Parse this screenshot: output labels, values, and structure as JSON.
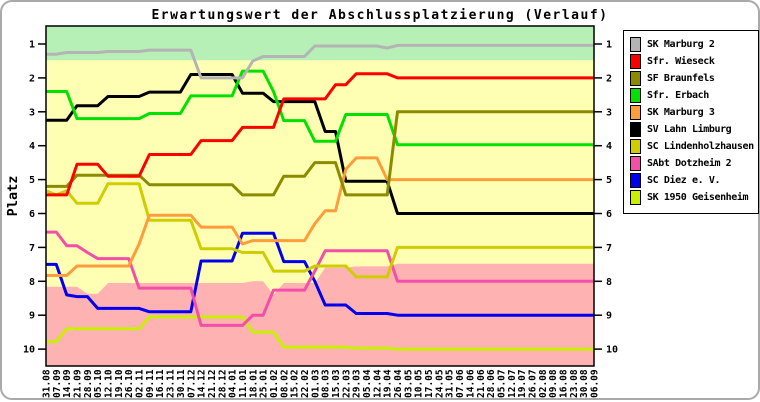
{
  "window": {
    "background": "#ffffff",
    "frame_color": "#a9a9a9"
  },
  "chart_data": {
    "type": "line",
    "title": "Erwartungswert der Abschlussplatzierung (Verlauf)",
    "ylabel": "Platz",
    "y_axis_inverted": true,
    "y_ticks": [
      1,
      2,
      3,
      4,
      5,
      6,
      7,
      8,
      9,
      10
    ],
    "ylim": [
      0.6,
      10.3
    ],
    "grid": false,
    "legend_position": "right",
    "x": [
      "31.08",
      "07.09",
      "14.09",
      "21.09",
      "28.09",
      "05.10",
      "12.10",
      "19.10",
      "26.10",
      "02.11",
      "09.11",
      "16.11",
      "23.11",
      "30.11",
      "07.12",
      "14.12",
      "21.12",
      "28.12",
      "04.01",
      "11.01",
      "18.01",
      "25.01",
      "01.02",
      "08.02",
      "15.02",
      "22.02",
      "01.03",
      "08.03",
      "15.03",
      "22.03",
      "29.03",
      "05.04",
      "12.04",
      "19.04",
      "26.04",
      "03.05",
      "10.05",
      "17.05",
      "24.05",
      "31.05",
      "07.06",
      "14.06",
      "21.06",
      "28.06",
      "05.07",
      "12.07",
      "19.07",
      "26.07",
      "02.08",
      "09.08",
      "16.08",
      "23.08",
      "30.08",
      "06.09"
    ],
    "zones": {
      "promotion": {
        "color": "#b6f0b6",
        "to_rank": 1.48
      },
      "neutral_color": "#ffffb4",
      "relegation": {
        "color": "#ffb2b2",
        "top_by_week": [
          8.16,
          8.16,
          8.16,
          8.16,
          8.37,
          8.37,
          8.05,
          8.05,
          8.05,
          8.05,
          8.05,
          8.05,
          8.05,
          8.05,
          8.05,
          8.05,
          8.05,
          8.05,
          8.05,
          8.05,
          8.0,
          8.0,
          8.4,
          8.05,
          8.05,
          8.05,
          8.05,
          7.6,
          7.6,
          7.6,
          7.56,
          7.56,
          7.56,
          7.56,
          7.48,
          7.48,
          7.48,
          7.48,
          7.48,
          7.48,
          7.48,
          7.48,
          7.48,
          7.48,
          7.48,
          7.48,
          7.48,
          7.48,
          7.48,
          7.48,
          7.48,
          7.48,
          7.48,
          7.48
        ]
      }
    },
    "series": [
      {
        "name": "SK Marburg 2",
        "color": "#b4b4b4",
        "values": [
          1.3,
          1.3,
          1.25,
          1.25,
          1.25,
          1.25,
          1.22,
          1.22,
          1.22,
          1.22,
          1.18,
          1.18,
          1.18,
          1.18,
          1.18,
          2,
          2,
          2,
          2,
          2,
          1.5,
          1.37,
          1.37,
          1.37,
          1.37,
          1.37,
          1.06,
          1.06,
          1.06,
          1.06,
          1.06,
          1.06,
          1.06,
          1.12,
          1.04,
          1.04,
          1.04,
          1.04,
          1.04,
          1.04,
          1.04,
          1.04,
          1.04,
          1.04,
          1.04,
          1.04,
          1.04,
          1.04,
          1.04,
          1.04,
          1.04,
          1.04,
          1.04,
          1.04
        ]
      },
      {
        "name": "Sfr. Wieseck",
        "color": "#ff0000",
        "values": [
          5.45,
          5.45,
          5.45,
          4.55,
          4.55,
          4.55,
          4.9,
          4.9,
          4.9,
          4.9,
          4.26,
          4.26,
          4.26,
          4.26,
          4.26,
          3.85,
          3.85,
          3.85,
          3.85,
          3.46,
          3.46,
          3.46,
          3.46,
          2.62,
          2.62,
          2.62,
          2.62,
          2.62,
          2.2,
          2.2,
          1.88,
          1.88,
          1.88,
          1.88,
          2,
          2,
          2,
          2,
          2,
          2,
          2,
          2,
          2,
          2,
          2,
          2,
          2,
          2,
          2,
          2,
          2,
          2,
          2,
          2
        ]
      },
      {
        "name": "SF Braunfels",
        "color": "#8b8b00",
        "values": [
          5.2,
          5.2,
          5.2,
          4.87,
          4.87,
          4.87,
          4.87,
          4.87,
          4.87,
          4.87,
          5.15,
          5.15,
          5.15,
          5.15,
          5.15,
          5.15,
          5.15,
          5.15,
          5.15,
          5.45,
          5.45,
          5.45,
          5.45,
          4.9,
          4.9,
          4.9,
          4.5,
          4.5,
          4.5,
          5.45,
          5.45,
          5.45,
          5.45,
          5.45,
          3,
          3,
          3,
          3,
          3,
          3,
          3,
          3,
          3,
          3,
          3,
          3,
          3,
          3,
          3,
          3,
          3,
          3,
          3,
          3
        ]
      },
      {
        "name": "Sfr. Erbach",
        "color": "#00e100",
        "values": [
          2.4,
          2.4,
          2.4,
          3.2,
          3.2,
          3.2,
          3.2,
          3.2,
          3.2,
          3.2,
          3.05,
          3.05,
          3.05,
          3.05,
          2.53,
          2.53,
          2.53,
          2.53,
          2.53,
          1.8,
          1.8,
          1.8,
          2.4,
          3.26,
          3.26,
          3.26,
          3.87,
          3.87,
          3.87,
          3.08,
          3.08,
          3.08,
          3.08,
          3.08,
          3.97,
          3.97,
          3.97,
          3.97,
          3.97,
          3.97,
          3.97,
          3.97,
          3.97,
          3.97,
          3.97,
          3.97,
          3.97,
          3.97,
          3.97,
          3.97,
          3.97,
          3.97,
          3.97,
          3.97
        ]
      },
      {
        "name": "SK Marburg 3",
        "color": "#ff9d3c",
        "values": [
          7.83,
          7.83,
          7.83,
          7.55,
          7.55,
          7.55,
          7.55,
          7.55,
          7.55,
          6.9,
          6.05,
          6.05,
          6.05,
          6.05,
          6.05,
          6.4,
          6.4,
          6.4,
          6.4,
          6.9,
          6.8,
          6.8,
          6.8,
          6.8,
          6.8,
          6.8,
          6.3,
          5.92,
          5.92,
          4.7,
          4.36,
          4.36,
          4.36,
          5,
          5,
          5,
          5,
          5,
          5,
          5,
          5,
          5,
          5,
          5,
          5,
          5,
          5,
          5,
          5,
          5,
          5,
          5,
          5,
          5
        ]
      },
      {
        "name": "SV Lahn Limburg",
        "color": "#000000",
        "values": [
          3.25,
          3.25,
          3.25,
          2.82,
          2.82,
          2.82,
          2.55,
          2.55,
          2.55,
          2.55,
          2.42,
          2.42,
          2.42,
          2.42,
          1.9,
          1.9,
          1.9,
          1.9,
          1.9,
          2.45,
          2.45,
          2.45,
          2.7,
          2.7,
          2.7,
          2.7,
          2.7,
          3.58,
          3.58,
          5.05,
          5.05,
          5.05,
          5.05,
          5.05,
          6,
          6,
          6,
          6,
          6,
          6,
          6,
          6,
          6,
          6,
          6,
          6,
          6,
          6,
          6,
          6,
          6,
          6,
          6,
          6
        ]
      },
      {
        "name": "SC Lindenholzhausen",
        "color": "#cdcd00",
        "values": [
          5.33,
          5.45,
          5.33,
          5.7,
          5.7,
          5.7,
          5.12,
          5.12,
          5.12,
          5.12,
          6.2,
          6.2,
          6.2,
          6.2,
          6.2,
          7.04,
          7.04,
          7.04,
          7.04,
          7.15,
          7.15,
          7.15,
          7.7,
          7.7,
          7.7,
          7.7,
          7.55,
          7.55,
          7.55,
          7.55,
          7.87,
          7.87,
          7.87,
          7.87,
          7,
          7,
          7,
          7,
          7,
          7,
          7,
          7,
          7,
          7,
          7,
          7,
          7,
          7,
          7,
          7,
          7,
          7,
          7,
          7
        ]
      },
      {
        "name": "SAbt Dotzheim 2",
        "color": "#f34fa8",
        "values": [
          6.55,
          6.55,
          6.95,
          6.95,
          7.15,
          7.33,
          7.33,
          7.33,
          7.33,
          8.2,
          8.2,
          8.2,
          8.2,
          8.2,
          8.2,
          9.3,
          9.3,
          9.3,
          9.3,
          9.3,
          9.0,
          9.0,
          8.26,
          8.26,
          8.26,
          8.26,
          7.7,
          7.1,
          7.1,
          7.1,
          7.1,
          7.1,
          7.1,
          7.1,
          8,
          8,
          8,
          8,
          8,
          8,
          8,
          8,
          8,
          8,
          8,
          8,
          8,
          8,
          8,
          8,
          8,
          8,
          8,
          8
        ]
      },
      {
        "name": "SC Diez e. V.",
        "color": "#0000f0",
        "values": [
          7.5,
          7.5,
          8.4,
          8.45,
          8.45,
          8.8,
          8.8,
          8.8,
          8.8,
          8.8,
          8.9,
          8.9,
          8.9,
          8.9,
          8.9,
          7.4,
          7.4,
          7.4,
          7.4,
          6.58,
          6.58,
          6.58,
          6.58,
          7.42,
          7.42,
          7.42,
          8.0,
          8.7,
          8.7,
          8.7,
          8.95,
          8.95,
          8.95,
          8.95,
          9,
          9,
          9,
          9,
          9,
          9,
          9,
          9,
          9,
          9,
          9,
          9,
          9,
          9,
          9,
          9,
          9,
          9,
          9,
          9
        ]
      },
      {
        "name": "SK 1950 Geisenheim",
        "color": "#c8f000",
        "values": [
          9.78,
          9.78,
          9.4,
          9.4,
          9.4,
          9.4,
          9.4,
          9.4,
          9.4,
          9.4,
          9.05,
          9.05,
          9.05,
          9.05,
          9.05,
          9.05,
          9.05,
          9.05,
          9.05,
          9.05,
          9.5,
          9.5,
          9.5,
          9.94,
          9.94,
          9.94,
          9.94,
          9.94,
          9.94,
          9.94,
          9.97,
          9.97,
          9.97,
          9.97,
          10,
          10,
          10,
          10,
          10,
          10,
          10,
          10,
          10,
          10,
          10,
          10,
          10,
          10,
          10,
          10,
          10,
          10,
          10,
          10
        ]
      }
    ]
  }
}
